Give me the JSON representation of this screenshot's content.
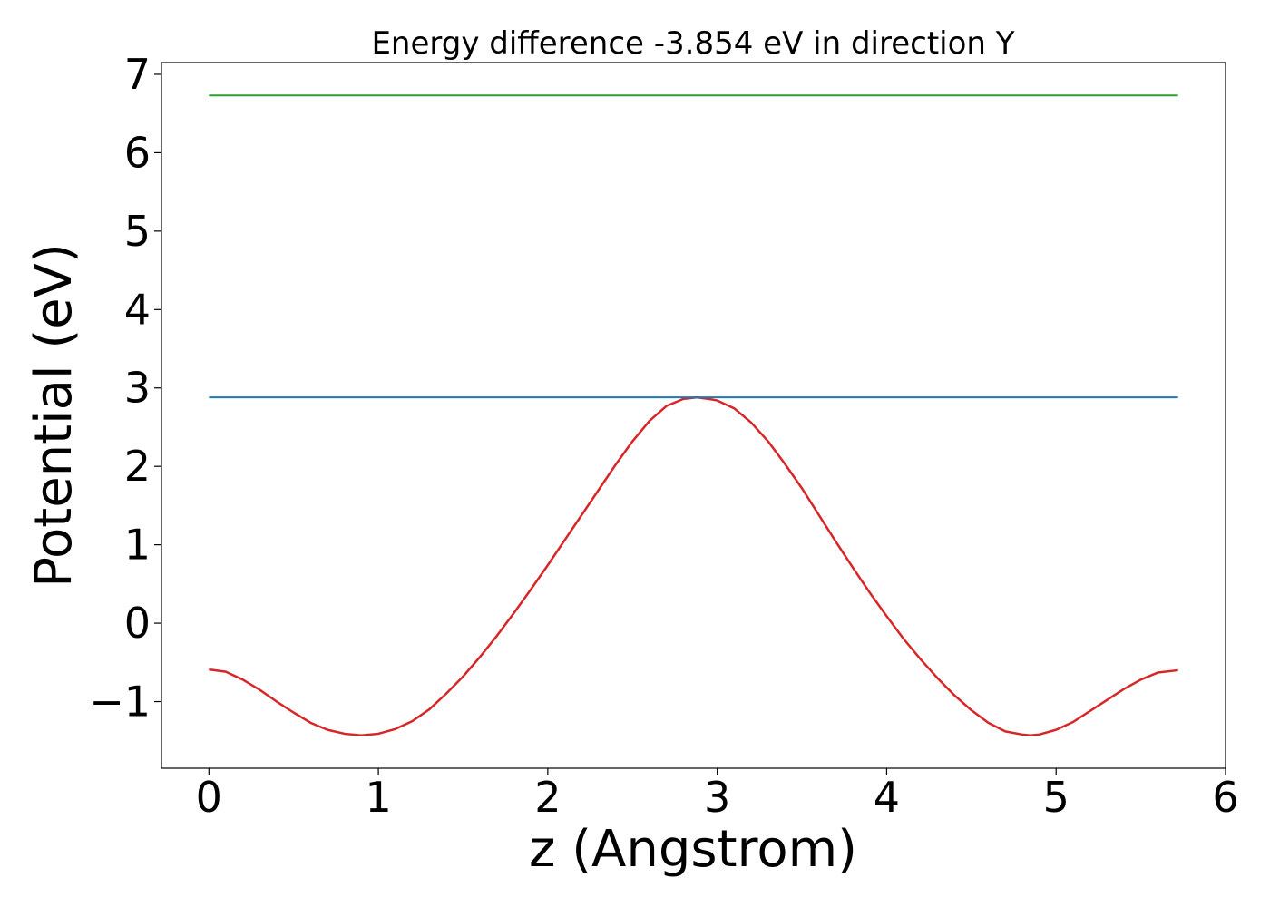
{
  "chart_data": {
    "type": "line",
    "title": "Energy difference -3.854 eV in direction Y",
    "xlabel": "z (Angstrom)",
    "ylabel": "Potential (eV)",
    "xlim": [
      -0.28,
      6.0
    ],
    "ylim": [
      -1.85,
      7.15
    ],
    "xticks": [
      0,
      1,
      2,
      3,
      4,
      5,
      6
    ],
    "xtick_labels": [
      "0",
      "1",
      "2",
      "3",
      "4",
      "5",
      "6"
    ],
    "yticks": [
      -1,
      0,
      1,
      2,
      3,
      4,
      5,
      6,
      7
    ],
    "ytick_labels": [
      "−1",
      "0",
      "1",
      "2",
      "3",
      "4",
      "5",
      "6",
      "7"
    ],
    "grid": false,
    "series": [
      {
        "color": "#d62728",
        "x": [
          0.0,
          0.1,
          0.2,
          0.3,
          0.4,
          0.5,
          0.6,
          0.7,
          0.8,
          0.9,
          1.0,
          1.1,
          1.2,
          1.3,
          1.4,
          1.5,
          1.6,
          1.7,
          1.8,
          1.9,
          2.0,
          2.1,
          2.2,
          2.3,
          2.4,
          2.5,
          2.6,
          2.7,
          2.8,
          2.88,
          2.95,
          3.0,
          3.1,
          3.2,
          3.3,
          3.4,
          3.5,
          3.6,
          3.7,
          3.8,
          3.9,
          4.0,
          4.1,
          4.2,
          4.3,
          4.4,
          4.5,
          4.6,
          4.7,
          4.8,
          4.85,
          4.9,
          5.0,
          5.1,
          5.2,
          5.3,
          5.4,
          5.5,
          5.6,
          5.72
        ],
        "y": [
          -0.59,
          -0.62,
          -0.72,
          -0.85,
          -1.0,
          -1.14,
          -1.27,
          -1.36,
          -1.41,
          -1.43,
          -1.41,
          -1.35,
          -1.25,
          -1.1,
          -0.9,
          -0.68,
          -0.43,
          -0.16,
          0.13,
          0.43,
          0.74,
          1.06,
          1.38,
          1.7,
          2.02,
          2.32,
          2.58,
          2.77,
          2.86,
          2.88,
          2.86,
          2.84,
          2.74,
          2.56,
          2.32,
          2.03,
          1.72,
          1.38,
          1.04,
          0.71,
          0.39,
          0.09,
          -0.2,
          -0.46,
          -0.7,
          -0.92,
          -1.11,
          -1.27,
          -1.38,
          -1.42,
          -1.43,
          -1.42,
          -1.36,
          -1.26,
          -1.12,
          -0.98,
          -0.84,
          -0.72,
          -0.63,
          -0.6
        ]
      },
      {
        "color": "#1f77b4",
        "x": [
          0.0,
          5.72
        ],
        "y": [
          2.88,
          2.88
        ]
      },
      {
        "color": "#2ca02c",
        "x": [
          0.0,
          5.72
        ],
        "y": [
          6.73,
          6.73
        ]
      }
    ]
  }
}
